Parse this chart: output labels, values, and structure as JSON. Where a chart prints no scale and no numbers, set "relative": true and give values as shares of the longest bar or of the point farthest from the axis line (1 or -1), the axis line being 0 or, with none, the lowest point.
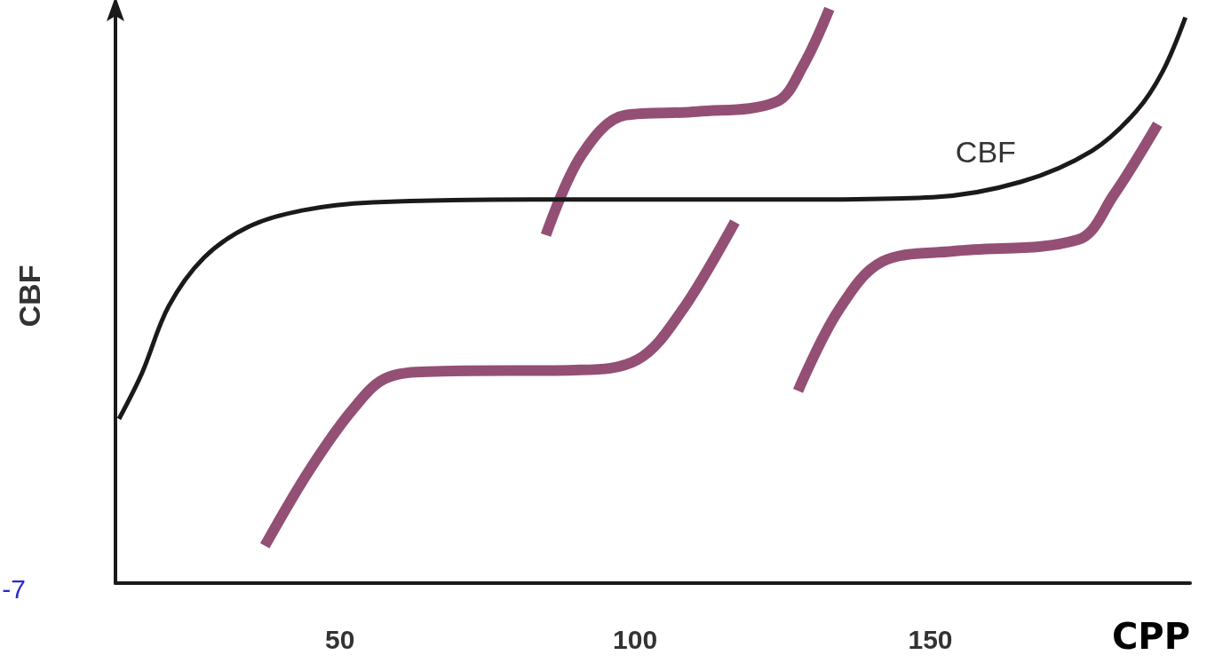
{
  "chart_data": {
    "type": "line",
    "xlabel": "CPP",
    "ylabel": "CBF",
    "relative": true,
    "xlim": [
      12,
      194
    ],
    "xticks": [
      50,
      100,
      150
    ],
    "grid": false,
    "legend": false,
    "marker": "none",
    "line_style": "solid",
    "annotations": [
      ".-7"
    ],
    "series": [
      {
        "name": "CBF",
        "color": "#1a1a1a",
        "x": [
          12.6,
          16.5,
          21,
          27,
          34.6,
          43.6,
          55.6,
          82.7,
          127.8,
          150.4,
          165.4,
          177.4,
          184.9,
          189.4,
          193.2
        ],
        "values": [
          0.286,
          0.366,
          0.482,
          0.567,
          0.621,
          0.649,
          0.663,
          0.668,
          0.668,
          0.672,
          0.699,
          0.753,
          0.822,
          0.892,
          0.985
        ]
      },
      {
        "color": "#944f74",
        "x": [
          37.3,
          44.8,
          52.3,
          58.3,
          67.4,
          89.9,
          100.4,
          107.9,
          116.9
        ],
        "values": [
          0.065,
          0.196,
          0.304,
          0.359,
          0.369,
          0.371,
          0.389,
          0.474,
          0.629
        ]
      },
      {
        "color": "#944f74",
        "x": [
          84.9,
          90.9,
          98.4,
          110.5,
          123.9,
          128.4,
          132.9
        ],
        "values": [
          0.606,
          0.745,
          0.815,
          0.821,
          0.838,
          0.9,
          1
        ]
      },
      {
        "color": "#944f74",
        "x": [
          127.6,
          134.4,
          141.9,
          153.9,
          175,
          181,
          188.5
        ],
        "values": [
          0.335,
          0.474,
          0.56,
          0.578,
          0.598,
          0.675,
          0.799
        ]
      }
    ]
  }
}
